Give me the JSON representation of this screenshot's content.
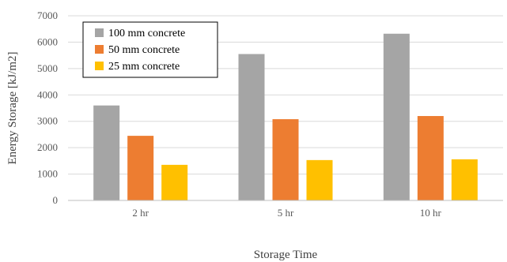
{
  "chart_data": {
    "type": "bar",
    "title": "",
    "xlabel": "Storage Time",
    "ylabel": "Energy Storage [kJ/m2]",
    "ylim": [
      0,
      7000
    ],
    "yticks": [
      0,
      1000,
      2000,
      3000,
      4000,
      5000,
      6000,
      7000
    ],
    "grid": true,
    "legend_position": "top-left",
    "categories": [
      "2 hr",
      "5 hr",
      "10 hr"
    ],
    "series": [
      {
        "name": "100 mm concrete",
        "color": "#a5a5a5",
        "values": [
          3600,
          5550,
          6320
        ]
      },
      {
        "name": "50 mm concrete",
        "color": "#ed7d31",
        "values": [
          2450,
          3080,
          3200
        ]
      },
      {
        "name": "25 mm concrete",
        "color": "#ffc000",
        "values": [
          1350,
          1530,
          1560
        ]
      }
    ]
  }
}
